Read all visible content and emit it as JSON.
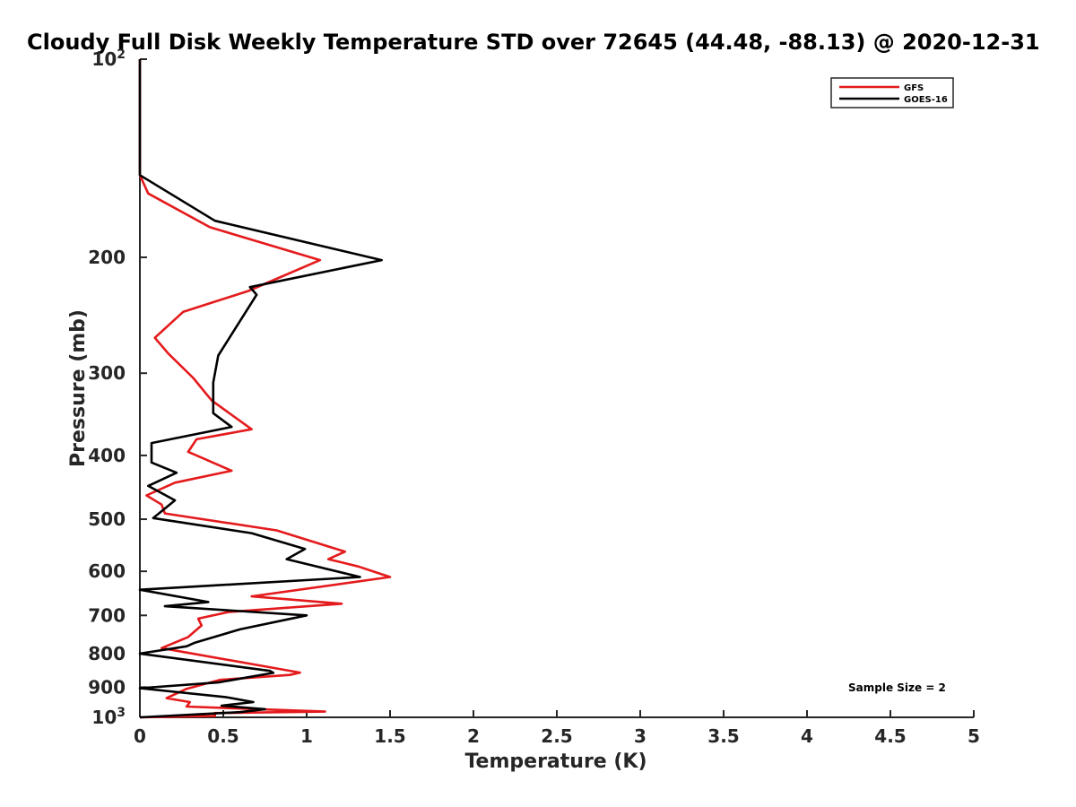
{
  "chart_data": {
    "type": "line",
    "title": "Cloudy Full Disk Weekly Temperature STD over 72645 (44.48, -88.13) @ 2020-12-31",
    "xlabel": "Temperature (K)",
    "ylabel": "Pressure (mb)",
    "xlim": [
      0,
      5
    ],
    "ylim": [
      100,
      1000
    ],
    "y_scale": "log",
    "y_reversed": true,
    "x_ticks": [
      "0",
      "0.5",
      "1",
      "1.5",
      "2",
      "2.5",
      "3",
      "3.5",
      "4",
      "4.5",
      "5"
    ],
    "y_ticks": [
      {
        "value": 100,
        "base": "10",
        "exp": "2"
      },
      {
        "value": 200,
        "label": "200"
      },
      {
        "value": 300,
        "label": "300"
      },
      {
        "value": 400,
        "label": "400"
      },
      {
        "value": 500,
        "label": "500"
      },
      {
        "value": 600,
        "label": "600"
      },
      {
        "value": 700,
        "label": "700"
      },
      {
        "value": 800,
        "label": "800"
      },
      {
        "value": 900,
        "label": "900"
      },
      {
        "value": 1000,
        "base": "10",
        "exp": "3"
      }
    ],
    "legend_position": "top-right",
    "annotation": "Sample Size = 2",
    "series": [
      {
        "name": "GFS",
        "color": "#e41a1c",
        "points": [
          [
            0,
            100
          ],
          [
            0,
            150
          ],
          [
            0.05,
            160
          ],
          [
            0.42,
            180
          ],
          [
            1.08,
            202
          ],
          [
            0.65,
            225
          ],
          [
            0.26,
            242
          ],
          [
            0.09,
            265
          ],
          [
            0.17,
            280
          ],
          [
            0.32,
            305
          ],
          [
            0.43,
            330
          ],
          [
            0.67,
            365
          ],
          [
            0.34,
            378
          ],
          [
            0.29,
            395
          ],
          [
            0.55,
            422
          ],
          [
            0.21,
            440
          ],
          [
            0.04,
            460
          ],
          [
            0.13,
            475
          ],
          [
            0.15,
            490
          ],
          [
            0.82,
            520
          ],
          [
            1.23,
            560
          ],
          [
            1.13,
            575
          ],
          [
            1.31,
            590
          ],
          [
            1.5,
            612
          ],
          [
            0.67,
            655
          ],
          [
            1.21,
            672
          ],
          [
            0.53,
            692
          ],
          [
            0.35,
            708
          ],
          [
            0.37,
            725
          ],
          [
            0.29,
            755
          ],
          [
            0.13,
            785
          ],
          [
            0.96,
            855
          ],
          [
            0.9,
            862
          ],
          [
            0.48,
            877
          ],
          [
            0.28,
            905
          ],
          [
            0.16,
            935
          ],
          [
            0.3,
            948
          ],
          [
            0.28,
            963
          ],
          [
            1.11,
            980
          ],
          [
            0.45,
            985
          ],
          [
            0.45,
            995
          ],
          [
            0,
            1000
          ]
        ]
      },
      {
        "name": "GOES-16",
        "color": "#000000",
        "points": [
          [
            0,
            100
          ],
          [
            0,
            150
          ],
          [
            0.45,
            176
          ],
          [
            1.45,
            202
          ],
          [
            0.66,
            222
          ],
          [
            0.7,
            228
          ],
          [
            0.47,
            282
          ],
          [
            0.44,
            310
          ],
          [
            0.44,
            345
          ],
          [
            0.55,
            362
          ],
          [
            0.07,
            383
          ],
          [
            0.07,
            410
          ],
          [
            0.22,
            425
          ],
          [
            0.05,
            445
          ],
          [
            0.21,
            468
          ],
          [
            0.08,
            498
          ],
          [
            0.67,
            525
          ],
          [
            0.99,
            555
          ],
          [
            0.88,
            575
          ],
          [
            1.32,
            612
          ],
          [
            0,
            640
          ],
          [
            0.41,
            668
          ],
          [
            0.15,
            678
          ],
          [
            1.0,
            700
          ],
          [
            0.6,
            735
          ],
          [
            0.33,
            770
          ],
          [
            0.28,
            780
          ],
          [
            0,
            800
          ],
          [
            0.78,
            850
          ],
          [
            0.8,
            856
          ],
          [
            0.47,
            885
          ],
          [
            0,
            903
          ],
          [
            0.52,
            932
          ],
          [
            0.68,
            948
          ],
          [
            0.49,
            960
          ],
          [
            0.75,
            972
          ],
          [
            0.6,
            982
          ],
          [
            0,
            1000
          ]
        ]
      }
    ]
  }
}
